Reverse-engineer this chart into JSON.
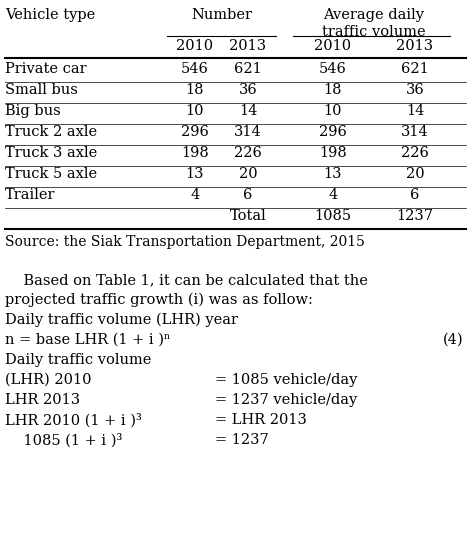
{
  "col_headers_left": "Vehicle type",
  "col_headers_mid": "Number",
  "col_headers_right": "Average daily\ntraffic volume",
  "sub_headers": [
    "2010",
    "2013",
    "2010",
    "2013"
  ],
  "rows": [
    [
      "Private car",
      "546",
      "621",
      "546",
      "621"
    ],
    [
      "Small bus",
      "18",
      "36",
      "18",
      "36"
    ],
    [
      "Big bus",
      "10",
      "14",
      "10",
      "14"
    ],
    [
      "Truck 2 axle",
      "296",
      "314",
      "296",
      "314"
    ],
    [
      "Truck 3 axle",
      "198",
      "226",
      "198",
      "226"
    ],
    [
      "Truck 5 axle",
      "13",
      "20",
      "13",
      "20"
    ],
    [
      "Trailer",
      "4",
      "6",
      "4",
      "6"
    ]
  ],
  "total_label": "Total",
  "total_2010": "1085",
  "total_2013": "1237",
  "source": "Source: the Siak Transportation Department, 2015",
  "para_line1": "    Based on Table 1, it can be calculated that the",
  "para_line2": "projected traffic growth (i) was as follow:",
  "para_line3": "Daily traffic volume (LHR) year",
  "para_line4_left": "n = base LHR (1 + i )ⁿ",
  "para_line4_right": "(4)",
  "para_line5": "Daily traffic volume",
  "para_line6_left": "(LHR) 2010",
  "para_line6_right": "= 1085 vehicle/day",
  "para_line7_left": "LHR 2013",
  "para_line7_right": "= 1237 vehicle/day",
  "para_line8_left": "LHR 2010 (1 + i )³",
  "para_line8_right": "= LHR 2013",
  "para_line9_left": "    1085 (1 + i )³",
  "para_line9_right": "= 1237",
  "bg_color": "#ffffff",
  "text_color": "#000000",
  "font_size": 10.5,
  "line_color": "#000000"
}
